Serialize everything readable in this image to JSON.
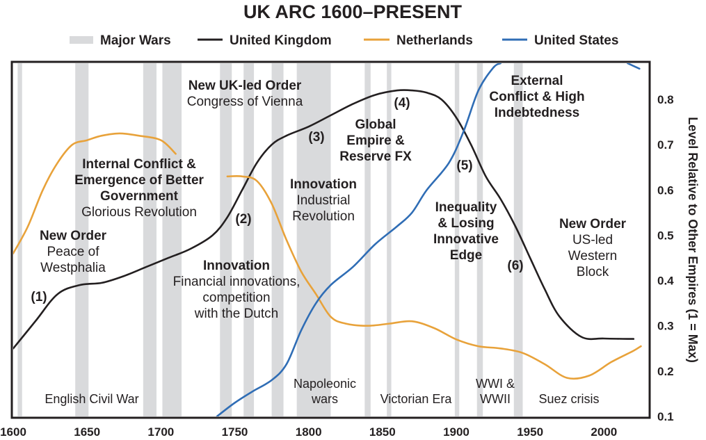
{
  "chart_data": {
    "type": "line",
    "title": "UK ARC 1600–PRESENT",
    "ylabel": "Level Relative to Other Empires (1 = Max)",
    "xlim": [
      1600,
      2030
    ],
    "ylim": [
      0.1,
      0.88
    ],
    "x_ticks": [
      "1600",
      "1650",
      "1700",
      "1750",
      "1800",
      "1850",
      "1900",
      "1950",
      "2000"
    ],
    "y_ticks": [
      "0.1",
      "0.2",
      "0.3",
      "0.4",
      "0.5",
      "0.6",
      "0.7",
      "0.8"
    ],
    "legend": [
      "Major Wars",
      "United Kingdom",
      "Netherlands",
      "United States"
    ],
    "wars": [
      {
        "start": 1603,
        "end": 1606
      },
      {
        "start": 1642,
        "end": 1651
      },
      {
        "start": 1688,
        "end": 1697
      },
      {
        "start": 1701,
        "end": 1714
      },
      {
        "start": 1740,
        "end": 1748
      },
      {
        "start": 1756,
        "end": 1763
      },
      {
        "start": 1775,
        "end": 1783
      },
      {
        "start": 1792,
        "end": 1815
      },
      {
        "start": 1838,
        "end": 1842
      },
      {
        "start": 1853,
        "end": 1856
      },
      {
        "start": 1899,
        "end": 1902
      },
      {
        "start": 1914,
        "end": 1918
      },
      {
        "start": 1939,
        "end": 1945
      }
    ],
    "series": [
      {
        "name": "United Kingdom",
        "color": "#231f20",
        "points": [
          [
            1600,
            0.25
          ],
          [
            1615,
            0.31
          ],
          [
            1630,
            0.37
          ],
          [
            1645,
            0.39
          ],
          [
            1660,
            0.395
          ],
          [
            1675,
            0.41
          ],
          [
            1690,
            0.43
          ],
          [
            1705,
            0.45
          ],
          [
            1720,
            0.47
          ],
          [
            1735,
            0.5
          ],
          [
            1745,
            0.54
          ],
          [
            1755,
            0.6
          ],
          [
            1765,
            0.66
          ],
          [
            1775,
            0.7
          ],
          [
            1785,
            0.72
          ],
          [
            1800,
            0.74
          ],
          [
            1815,
            0.765
          ],
          [
            1830,
            0.79
          ],
          [
            1845,
            0.81
          ],
          [
            1860,
            0.82
          ],
          [
            1870,
            0.82
          ],
          [
            1880,
            0.815
          ],
          [
            1890,
            0.8
          ],
          [
            1900,
            0.76
          ],
          [
            1910,
            0.7
          ],
          [
            1920,
            0.63
          ],
          [
            1930,
            0.58
          ],
          [
            1940,
            0.52
          ],
          [
            1950,
            0.45
          ],
          [
            1960,
            0.38
          ],
          [
            1970,
            0.32
          ],
          [
            1985,
            0.275
          ],
          [
            2000,
            0.272
          ],
          [
            2020,
            0.271
          ]
        ]
      },
      {
        "name": "Netherlands",
        "color": "#e8a23a",
        "points": [
          [
            1600,
            0.46
          ],
          [
            1610,
            0.52
          ],
          [
            1620,
            0.6
          ],
          [
            1630,
            0.66
          ],
          [
            1640,
            0.7
          ],
          [
            1650,
            0.71
          ],
          [
            1660,
            0.72
          ],
          [
            1672,
            0.725
          ],
          [
            1685,
            0.72
          ],
          [
            1700,
            0.71
          ],
          [
            1710,
            0.68
          ]
        ]
      },
      {
        "name": "Netherlands",
        "color": "#e8a23a",
        "points": [
          [
            1745,
            0.63
          ],
          [
            1755,
            0.63
          ],
          [
            1765,
            0.62
          ],
          [
            1775,
            0.57
          ],
          [
            1785,
            0.49
          ],
          [
            1795,
            0.42
          ],
          [
            1805,
            0.37
          ],
          [
            1815,
            0.32
          ],
          [
            1825,
            0.305
          ],
          [
            1840,
            0.3
          ],
          [
            1855,
            0.305
          ],
          [
            1870,
            0.31
          ],
          [
            1885,
            0.295
          ],
          [
            1900,
            0.27
          ],
          [
            1915,
            0.255
          ],
          [
            1930,
            0.25
          ],
          [
            1945,
            0.24
          ],
          [
            1960,
            0.215
          ],
          [
            1975,
            0.185
          ],
          [
            1990,
            0.19
          ],
          [
            2005,
            0.22
          ],
          [
            2020,
            0.245
          ],
          [
            2025,
            0.255
          ]
        ]
      },
      {
        "name": "United States",
        "color": "#2f6db5",
        "points": [
          [
            1738,
            0.1
          ],
          [
            1750,
            0.13
          ],
          [
            1762,
            0.155
          ],
          [
            1775,
            0.18
          ],
          [
            1785,
            0.215
          ],
          [
            1795,
            0.29
          ],
          [
            1805,
            0.35
          ],
          [
            1815,
            0.39
          ],
          [
            1830,
            0.43
          ],
          [
            1845,
            0.48
          ],
          [
            1860,
            0.52
          ],
          [
            1870,
            0.55
          ],
          [
            1880,
            0.6
          ],
          [
            1895,
            0.66
          ],
          [
            1905,
            0.73
          ],
          [
            1915,
            0.82
          ],
          [
            1925,
            0.87
          ],
          [
            1930,
            0.88
          ]
        ]
      },
      {
        "name": "United States",
        "color": "#2f6db5",
        "points": [
          [
            2016,
            0.88
          ],
          [
            2024,
            0.868
          ]
        ]
      }
    ],
    "annotations": {
      "new_order_1_t": "New Order",
      "new_order_1_a": "Peace of",
      "new_order_1_b": "Westphalia",
      "internal_a": "Internal Conflict &",
      "internal_b": "Emergence of Better",
      "internal_c": "Government",
      "internal_d": "Glorious Revolution",
      "new_uk_t": "New UK-led Order",
      "new_uk_s": "Congress of Vienna",
      "innov_fin_t": "Innovation",
      "innov_fin_a": "Financial innovations,",
      "innov_fin_b": "competition",
      "innov_fin_c": "with the Dutch",
      "innov_ind_t": "Innovation",
      "innov_ind_a": "Industrial",
      "innov_ind_b": "Revolution",
      "global_a": "Global",
      "global_b": "Empire &",
      "global_c": "Reserve FX",
      "external_a": "External",
      "external_b": "Conflict & High",
      "external_c": "Indebtedness",
      "inequality_a": "Inequality",
      "inequality_b": "& Losing",
      "inequality_c": "Innovative",
      "inequality_d": "Edge",
      "new_us_t": "New Order",
      "new_us_a": "US-led",
      "new_us_b": "Western",
      "new_us_c": "Block",
      "stage_1": "(1)",
      "stage_2": "(2)",
      "stage_3": "(3)",
      "stage_4": "(4)",
      "stage_5": "(5)",
      "stage_6": "(6)"
    },
    "eras": {
      "english_civil_war": "English Civil War",
      "napoleonic_a": "Napoleonic",
      "napoleonic_b": "wars",
      "victorian": "Victorian Era",
      "wwi_a": "WWI &",
      "wwi_b": "WWII",
      "suez": "Suez crisis"
    }
  }
}
